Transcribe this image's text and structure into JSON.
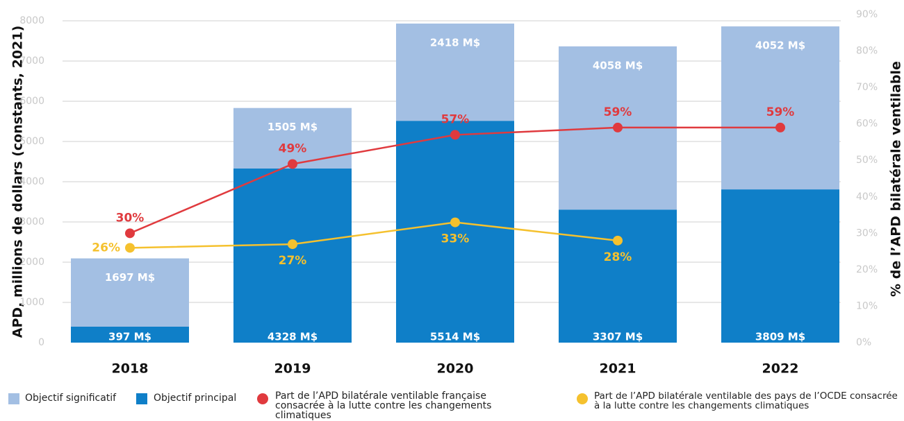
{
  "chart_data": {
    "type": "bar",
    "stacked": true,
    "categories": [
      "2018",
      "2019",
      "2020",
      "2021",
      "2022"
    ],
    "series": [
      {
        "name": "Objectif significatif",
        "type": "bar",
        "color": "#a3bfe3",
        "values": [
          1697,
          1505,
          2418,
          4058,
          4052
        ],
        "value_labels": [
          "1697 M$",
          "1505 M$",
          "2418 M$",
          "4058 M$",
          "4052 M$"
        ]
      },
      {
        "name": "Objectif principal",
        "type": "bar",
        "color": "#0f7fc8",
        "values": [
          397,
          4328,
          5514,
          3307,
          3809
        ],
        "value_labels": [
          "397 M$",
          "4328 M$",
          "5514 M$",
          "3307 M$",
          "3809 M$"
        ]
      },
      {
        "name": "Part de l’APD bilatérale ventilable française consacrée à la lutte contre les changements climatiques",
        "type": "line",
        "axis": "y2",
        "color": "#e03a3e",
        "values": [
          30,
          49,
          57,
          59,
          59
        ],
        "value_labels": [
          "30%",
          "49%",
          "57%",
          "59%",
          "59%"
        ]
      },
      {
        "name": "Part de l’APD bilatérale ventilable des pays de l’OCDE consacrée à la lutte contre les changements climatiques",
        "type": "line",
        "axis": "y2",
        "color": "#f5c12e",
        "values": [
          26,
          27,
          33,
          28,
          null
        ],
        "value_labels": [
          "26%",
          "27%",
          "33%",
          "28%",
          null
        ]
      }
    ],
    "ylabel": "APD, millions de dollars (constants, 2021)",
    "y2label": "% de l’APD bilatérale ventilable",
    "ylim": [
      0,
      8000
    ],
    "yticks": [
      0,
      1000,
      2000,
      3000,
      4000,
      5000,
      6000,
      7000,
      8000
    ],
    "y2lim": [
      0,
      90
    ],
    "y2ticks": [
      {
        "value": 0,
        "label": "0%"
      },
      {
        "value": 10,
        "label": "10%"
      },
      {
        "value": 20,
        "label": "20%"
      },
      {
        "value": 30,
        "label": "30%"
      },
      {
        "value": 40,
        "label": "40%"
      },
      {
        "value": 50,
        "label": "50%"
      },
      {
        "value": 60,
        "label": "60%"
      },
      {
        "value": 70,
        "label": "70%"
      },
      {
        "value": 80,
        "label": "80%"
      },
      {
        "value": 90,
        "label": "90%"
      }
    ],
    "grid": true
  }
}
